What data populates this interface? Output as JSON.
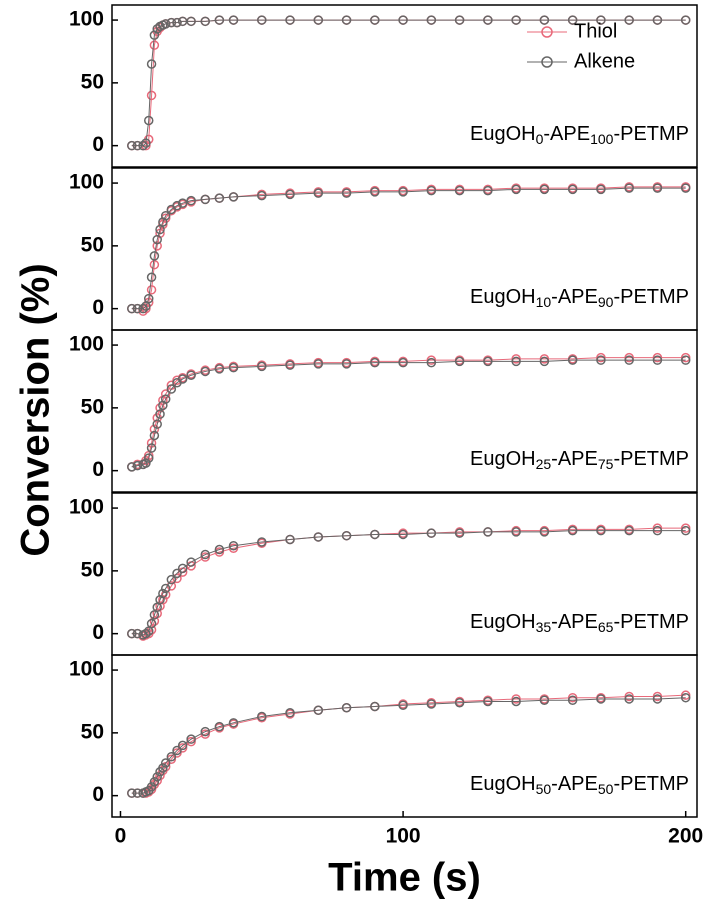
{
  "chart_data": [
    {
      "type": "line",
      "label": [
        "EugOH",
        "0",
        "-APE",
        "100",
        "-PETMP"
      ],
      "legend": "upper right",
      "x": [
        4,
        6,
        8,
        9,
        10,
        11,
        12,
        13,
        14,
        15,
        16,
        18,
        20,
        22,
        25,
        30,
        35,
        40,
        50,
        60,
        70,
        80,
        90,
        100,
        110,
        120,
        130,
        140,
        150,
        160,
        170,
        180,
        190,
        200
      ],
      "series": [
        {
          "name": "Thiol",
          "color": "#e8697a",
          "values": [
            0,
            0,
            0,
            0,
            5,
            40,
            80,
            91,
            94,
            96,
            97,
            98,
            98,
            99,
            99,
            99,
            100,
            100,
            100,
            100,
            100,
            100,
            100,
            100,
            100,
            100,
            100,
            100,
            100,
            100,
            100,
            100,
            100,
            100
          ]
        },
        {
          "name": "Alkene",
          "color": "#666666",
          "values": [
            0,
            0,
            0,
            2,
            20,
            65,
            88,
            93,
            95,
            96,
            97,
            98,
            98,
            99,
            99,
            99,
            100,
            100,
            100,
            100,
            100,
            100,
            100,
            100,
            100,
            100,
            100,
            100,
            100,
            100,
            100,
            100,
            100,
            100
          ]
        }
      ],
      "xlim": [
        -3,
        204
      ],
      "ylim": [
        -17,
        112
      ],
      "yticks": [
        0,
        50,
        100
      ]
    },
    {
      "type": "line",
      "label": [
        "EugOH",
        "10",
        "-APE",
        "90",
        "-PETMP"
      ],
      "x": [
        4,
        6,
        8,
        9,
        10,
        11,
        12,
        13,
        14,
        15,
        16,
        18,
        20,
        22,
        25,
        30,
        35,
        40,
        50,
        60,
        70,
        80,
        90,
        100,
        110,
        120,
        130,
        140,
        150,
        160,
        170,
        180,
        190,
        200
      ],
      "series": [
        {
          "name": "Thiol",
          "color": "#e8697a",
          "values": [
            0,
            0,
            -2,
            0,
            5,
            15,
            35,
            50,
            60,
            67,
            72,
            78,
            81,
            83,
            85,
            87,
            88,
            89,
            91,
            92,
            93,
            93,
            94,
            94,
            95,
            95,
            95,
            96,
            96,
            96,
            96,
            97,
            97,
            97
          ]
        },
        {
          "name": "Alkene",
          "color": "#666666",
          "values": [
            0,
            0,
            0,
            2,
            8,
            25,
            42,
            55,
            63,
            69,
            74,
            79,
            82,
            84,
            86,
            87,
            88,
            89,
            90,
            91,
            92,
            92,
            93,
            93,
            94,
            94,
            94,
            95,
            95,
            95,
            95,
            96,
            96,
            96
          ]
        }
      ],
      "xlim": [
        -3,
        204
      ],
      "ylim": [
        -17,
        112
      ],
      "yticks": [
        0,
        50,
        100
      ]
    },
    {
      "type": "line",
      "label": [
        "EugOH",
        "25",
        "-APE",
        "75",
        "-PETMP"
      ],
      "ylabel": "Conversion (%)",
      "x": [
        4,
        6,
        8,
        9,
        10,
        11,
        12,
        13,
        14,
        15,
        16,
        18,
        20,
        22,
        25,
        30,
        35,
        40,
        50,
        60,
        70,
        80,
        90,
        100,
        110,
        120,
        130,
        140,
        150,
        160,
        170,
        180,
        190,
        200
      ],
      "series": [
        {
          "name": "Thiol",
          "color": "#e8697a",
          "values": [
            3,
            5,
            5,
            8,
            12,
            22,
            33,
            42,
            50,
            56,
            61,
            68,
            72,
            74,
            77,
            80,
            82,
            83,
            84,
            85,
            86,
            86,
            87,
            87,
            88,
            88,
            88,
            89,
            89,
            89,
            90,
            90,
            90,
            90
          ]
        },
        {
          "name": "Alkene",
          "color": "#666666",
          "values": [
            3,
            4,
            5,
            6,
            10,
            18,
            28,
            37,
            45,
            52,
            57,
            65,
            70,
            73,
            76,
            79,
            81,
            82,
            83,
            84,
            85,
            85,
            86,
            86,
            86,
            87,
            87,
            87,
            87,
            88,
            88,
            88,
            88,
            88
          ]
        }
      ],
      "xlim": [
        -3,
        204
      ],
      "ylim": [
        -17,
        112
      ],
      "yticks": [
        0,
        50,
        100
      ]
    },
    {
      "type": "line",
      "label": [
        "EugOH",
        "35",
        "-APE",
        "65",
        "-PETMP"
      ],
      "x": [
        4,
        6,
        8,
        9,
        10,
        11,
        12,
        13,
        14,
        15,
        16,
        18,
        20,
        22,
        25,
        30,
        35,
        40,
        50,
        60,
        70,
        80,
        90,
        100,
        110,
        120,
        130,
        140,
        150,
        160,
        170,
        180,
        190,
        200
      ],
      "series": [
        {
          "name": "Thiol",
          "color": "#e8697a",
          "values": [
            0,
            0,
            -2,
            -1,
            0,
            3,
            10,
            16,
            22,
            27,
            31,
            38,
            44,
            49,
            54,
            61,
            65,
            68,
            72,
            75,
            77,
            78,
            79,
            80,
            80,
            81,
            81,
            82,
            82,
            83,
            83,
            83,
            84,
            84
          ]
        },
        {
          "name": "Alkene",
          "color": "#666666",
          "values": [
            0,
            0,
            -1,
            0,
            2,
            8,
            15,
            21,
            27,
            32,
            36,
            43,
            48,
            52,
            57,
            63,
            67,
            70,
            73,
            75,
            77,
            78,
            79,
            79,
            80,
            80,
            81,
            81,
            81,
            82,
            82,
            82,
            82,
            82
          ]
        }
      ],
      "xlim": [
        -3,
        204
      ],
      "ylim": [
        -17,
        112
      ],
      "yticks": [
        0,
        50,
        100
      ]
    },
    {
      "type": "line",
      "label": [
        "EugOH",
        "50",
        "-APE",
        "50",
        "-PETMP"
      ],
      "xlabel": "Time (s)",
      "x": [
        4,
        6,
        8,
        9,
        10,
        11,
        12,
        13,
        14,
        15,
        16,
        18,
        20,
        22,
        25,
        30,
        35,
        40,
        50,
        60,
        70,
        80,
        90,
        100,
        110,
        120,
        130,
        140,
        150,
        160,
        170,
        180,
        190,
        200
      ],
      "series": [
        {
          "name": "Thiol",
          "color": "#e8697a",
          "values": [
            2,
            2,
            2,
            2,
            3,
            5,
            9,
            12,
            16,
            20,
            23,
            29,
            34,
            38,
            43,
            49,
            54,
            57,
            62,
            65,
            68,
            70,
            71,
            73,
            74,
            75,
            76,
            77,
            77,
            78,
            78,
            79,
            79,
            80
          ]
        },
        {
          "name": "Alkene",
          "color": "#666666",
          "values": [
            2,
            2,
            2,
            3,
            4,
            7,
            11,
            15,
            19,
            22,
            26,
            31,
            36,
            40,
            45,
            51,
            55,
            58,
            63,
            66,
            68,
            70,
            71,
            72,
            73,
            74,
            75,
            75,
            76,
            76,
            77,
            77,
            77,
            78
          ]
        }
      ],
      "xlim": [
        -3,
        204
      ],
      "ylim": [
        -17,
        112
      ],
      "yticks": [
        0,
        50,
        100
      ],
      "xticks": [
        0,
        100,
        200
      ]
    }
  ]
}
